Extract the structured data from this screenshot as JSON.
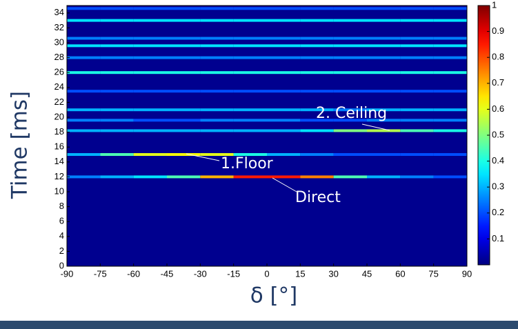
{
  "chart_data": {
    "type": "heatmap",
    "x_label": "δ [°]",
    "y_label": "Time [ms]",
    "xlim": [
      -90,
      90
    ],
    "xticks": [
      -90,
      -75,
      -60,
      -45,
      -30,
      -15,
      0,
      15,
      30,
      45,
      60,
      75,
      90
    ],
    "ylim": [
      0,
      35
    ],
    "yticks": [
      0,
      2,
      4,
      6,
      8,
      10,
      12,
      14,
      16,
      18,
      20,
      22,
      24,
      26,
      28,
      30,
      32,
      34
    ],
    "zlim": [
      0,
      1
    ],
    "zticks": [
      0.1,
      0.2,
      0.3,
      0.4,
      0.5,
      0.6,
      0.7,
      0.8,
      0.9,
      1
    ],
    "colormap": "jet",
    "x": [
      -82.5,
      -67.5,
      -52.5,
      -37.5,
      -22.5,
      -7.5,
      7.5,
      22.5,
      37.5,
      52.5,
      67.5,
      82.5
    ],
    "y": [
      12,
      15,
      18.2,
      19.6,
      21,
      23.5,
      26,
      28,
      29.6,
      30.6,
      33,
      34.6
    ],
    "z": [
      [
        0.25,
        0.3,
        0.35,
        0.45,
        0.7,
        0.85,
        0.85,
        0.75,
        0.45,
        0.3,
        0.25,
        0.2
      ],
      [
        0.3,
        0.45,
        0.6,
        0.62,
        0.6,
        0.4,
        0.3,
        0.25,
        0.2,
        0.2,
        0.2,
        0.2
      ],
      [
        0.3,
        0.3,
        0.3,
        0.3,
        0.3,
        0.3,
        0.3,
        0.35,
        0.5,
        0.55,
        0.45,
        0.4
      ],
      [
        0.25,
        0.25,
        0.2,
        0.2,
        0.25,
        0.25,
        0.25,
        0.2,
        0.2,
        0.25,
        0.25,
        0.25
      ],
      [
        0.3,
        0.3,
        0.3,
        0.3,
        0.3,
        0.3,
        0.3,
        0.3,
        0.25,
        0.3,
        0.3,
        0.3
      ],
      [
        0.2,
        0.2,
        0.2,
        0.2,
        0.2,
        0.2,
        0.2,
        0.2,
        0.2,
        0.2,
        0.2,
        0.2
      ],
      [
        0.4,
        0.4,
        0.4,
        0.4,
        0.4,
        0.4,
        0.4,
        0.4,
        0.4,
        0.4,
        0.4,
        0.4
      ],
      [
        0.25,
        0.25,
        0.25,
        0.25,
        0.25,
        0.25,
        0.25,
        0.25,
        0.25,
        0.25,
        0.25,
        0.25
      ],
      [
        0.35,
        0.35,
        0.35,
        0.35,
        0.35,
        0.35,
        0.35,
        0.35,
        0.35,
        0.35,
        0.35,
        0.35
      ],
      [
        0.25,
        0.25,
        0.25,
        0.25,
        0.25,
        0.25,
        0.25,
        0.25,
        0.25,
        0.25,
        0.25,
        0.25
      ],
      [
        0.35,
        0.35,
        0.35,
        0.35,
        0.35,
        0.35,
        0.35,
        0.35,
        0.35,
        0.35,
        0.35,
        0.35
      ],
      [
        0.2,
        0.2,
        0.2,
        0.2,
        0.2,
        0.2,
        0.2,
        0.2,
        0.2,
        0.2,
        0.2,
        0.2
      ]
    ],
    "annotations": [
      {
        "text": "2. Ceiling"
      },
      {
        "text": "1.Floor"
      },
      {
        "text": "Direct"
      }
    ]
  }
}
